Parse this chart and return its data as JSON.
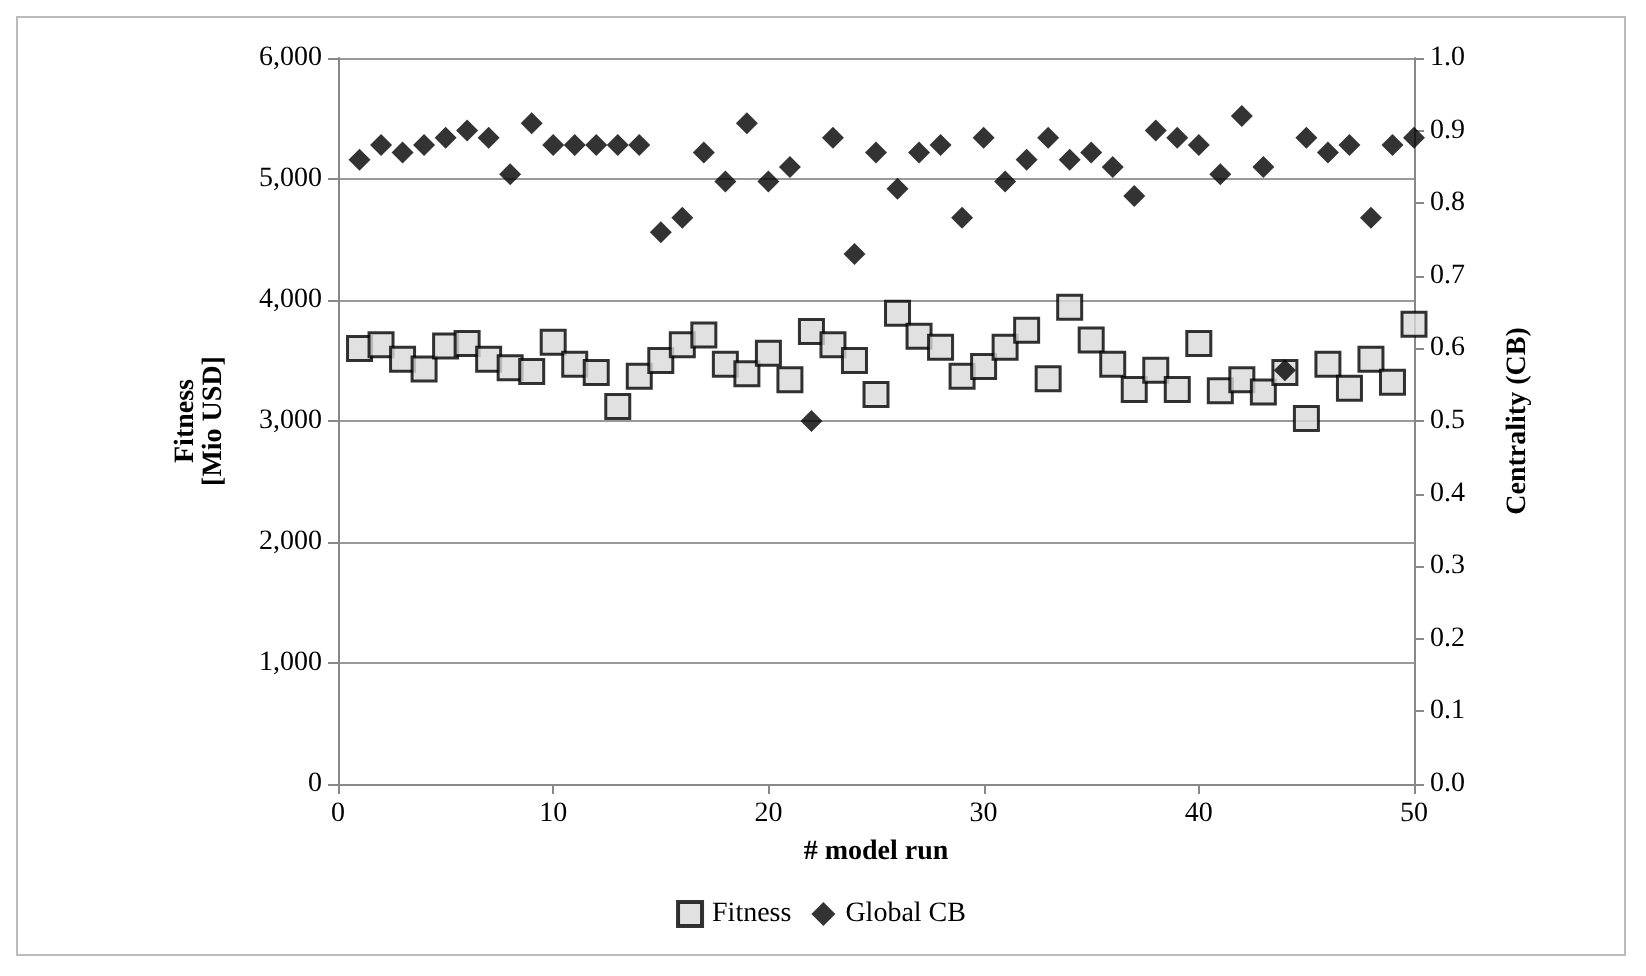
{
  "chart_data": {
    "type": "scatter",
    "xlabel": "# model run",
    "ylabel": "Fitness\n[Mio USD]",
    "y2label": "Centrality (CB)",
    "x": [
      1,
      2,
      3,
      4,
      5,
      6,
      7,
      8,
      9,
      10,
      11,
      12,
      13,
      14,
      15,
      16,
      17,
      18,
      19,
      20,
      21,
      22,
      23,
      24,
      25,
      26,
      27,
      28,
      29,
      30,
      31,
      32,
      33,
      34,
      35,
      36,
      37,
      38,
      39,
      40,
      41,
      42,
      43,
      44,
      45,
      46,
      47,
      48,
      49,
      50
    ],
    "series": [
      {
        "name": "Fitness",
        "color": "#d9d9d9",
        "marker": "square",
        "values": [
          3600,
          3630,
          3510,
          3430,
          3620,
          3640,
          3510,
          3440,
          3410,
          3650,
          3470,
          3400,
          3120,
          3370,
          3500,
          3630,
          3710,
          3470,
          3390,
          3560,
          3340,
          3740,
          3630,
          3500,
          3220,
          3890,
          3700,
          3610,
          3370,
          3450,
          3610,
          3750,
          3350,
          3940,
          3670,
          3470,
          3260,
          3420,
          3260,
          3640,
          3250,
          3340,
          3240,
          3400,
          3020,
          3470,
          3270,
          3510,
          3320,
          3800
        ]
      },
      {
        "name": "Global CB",
        "color": "#000000",
        "marker": "diamond",
        "axis": "y2",
        "values": [
          0.86,
          0.88,
          0.87,
          0.88,
          0.89,
          0.9,
          0.89,
          0.84,
          0.91,
          0.88,
          0.88,
          0.88,
          0.88,
          0.88,
          0.76,
          0.78,
          0.87,
          0.83,
          0.91,
          0.83,
          0.85,
          0.5,
          0.89,
          0.73,
          0.87,
          0.82,
          0.87,
          0.88,
          0.78,
          0.89,
          0.83,
          0.86,
          0.89,
          0.86,
          0.87,
          0.85,
          0.81,
          0.9,
          0.89,
          0.88,
          0.84,
          0.92,
          0.85,
          0.57,
          0.89,
          0.87,
          0.88,
          0.78,
          0.88,
          0.89
        ]
      }
    ],
    "xlim": [
      0,
      50
    ],
    "xticks": [
      0,
      10,
      20,
      30,
      40,
      50
    ],
    "ylim": [
      0,
      6000
    ],
    "yticks": [
      {
        "value": 0,
        "label": "0"
      },
      {
        "value": 1000,
        "label": "1,000"
      },
      {
        "value": 2000,
        "label": "2,000"
      },
      {
        "value": 3000,
        "label": "3,000"
      },
      {
        "value": 4000,
        "label": "4,000"
      },
      {
        "value": 5000,
        "label": "5,000"
      },
      {
        "value": 6000,
        "label": "6,000"
      }
    ],
    "y2lim": [
      0,
      1
    ],
    "y2ticks": [
      {
        "value": 0,
        "label": "0.0"
      },
      {
        "value": 0.1,
        "label": "0.1"
      },
      {
        "value": 0.2,
        "label": "0.2"
      },
      {
        "value": 0.3,
        "label": "0.3"
      },
      {
        "value": 0.4,
        "label": "0.4"
      },
      {
        "value": 0.5,
        "label": "0.5"
      },
      {
        "value": 0.6,
        "label": "0.6"
      },
      {
        "value": 0.7,
        "label": "0.7"
      },
      {
        "value": 0.8,
        "label": "0.8"
      },
      {
        "value": 0.9,
        "label": "0.9"
      },
      {
        "value": 1,
        "label": "1.0"
      }
    ],
    "grid": "y",
    "legend": "bottom"
  }
}
